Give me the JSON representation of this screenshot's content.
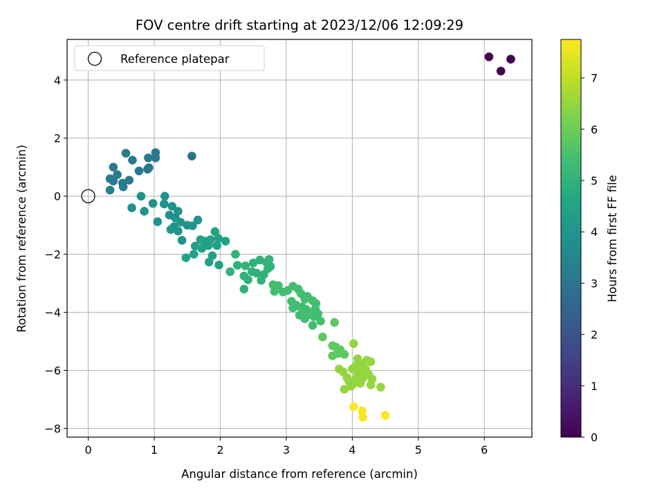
{
  "chart_data": {
    "type": "scatter",
    "title": "FOV centre drift starting at 2023/12/06 12:09:29",
    "xlabel": "Angular distance from reference (arcmin)",
    "ylabel": "Rotation from reference (arcmin)",
    "xlim": [
      -0.32,
      6.72
    ],
    "ylim": [
      -8.3,
      5.4
    ],
    "xticks": [
      0,
      1,
      2,
      3,
      4,
      5,
      6
    ],
    "yticks": [
      -8,
      -6,
      -4,
      -2,
      0,
      2,
      4
    ],
    "grid": true,
    "legend": {
      "placement": "upper-left",
      "entries": [
        "Reference platepar"
      ]
    },
    "reference_point": {
      "x": 0,
      "y": 0
    },
    "colorbar": {
      "label": "Hours from first FF file",
      "colormap": "viridis",
      "range": [
        0,
        7.75
      ],
      "ticks": [
        0,
        1,
        2,
        3,
        4,
        5,
        6,
        7
      ]
    },
    "points": [
      [
        6.07,
        4.8,
        0
      ],
      [
        6.4,
        4.72,
        0
      ],
      [
        6.25,
        4.31,
        0
      ],
      [
        0.57,
        1.48,
        3.1
      ],
      [
        1.02,
        1.5,
        3.1
      ],
      [
        1.02,
        1.32,
        3.1
      ],
      [
        0.91,
        1.32,
        3.1
      ],
      [
        0.67,
        1.24,
        3.1
      ],
      [
        0.92,
        0.98,
        3.1
      ],
      [
        0.9,
        0.93,
        3.1
      ],
      [
        0.77,
        0.87,
        3.1
      ],
      [
        0.38,
        1.0,
        3.2
      ],
      [
        0.44,
        0.74,
        3.2
      ],
      [
        0.33,
        0.6,
        3.2
      ],
      [
        0.38,
        0.52,
        3.2
      ],
      [
        0.52,
        0.45,
        3.2
      ],
      [
        0.62,
        0.55,
        3.2
      ],
      [
        0.53,
        0.32,
        3.2
      ],
      [
        0.33,
        0.21,
        3.3
      ],
      [
        1.57,
        1.38,
        3.0
      ],
      [
        0.8,
        0.0,
        3.9
      ],
      [
        1.16,
        0.0,
        3.9
      ],
      [
        0.98,
        -0.25,
        3.9
      ],
      [
        1.15,
        -0.27,
        3.9
      ],
      [
        1.27,
        -0.35,
        3.9
      ],
      [
        0.66,
        -0.4,
        3.9
      ],
      [
        0.85,
        -0.52,
        3.9
      ],
      [
        1.36,
        -0.52,
        3.9
      ],
      [
        1.23,
        -0.65,
        3.9
      ],
      [
        1.32,
        -0.75,
        3.9
      ],
      [
        1.05,
        -0.88,
        3.9
      ],
      [
        1.4,
        -0.9,
        4.0
      ],
      [
        1.3,
        -1.05,
        4.0
      ],
      [
        1.25,
        -1.15,
        4.0
      ],
      [
        1.36,
        -1.2,
        4.0
      ],
      [
        1.5,
        -1.0,
        4.0
      ],
      [
        1.58,
        -1.02,
        4.0
      ],
      [
        1.66,
        -0.82,
        4.0
      ],
      [
        1.42,
        -1.52,
        4.0
      ],
      [
        1.7,
        -1.5,
        4.4
      ],
      [
        1.78,
        -1.6,
        4.4
      ],
      [
        1.85,
        -1.5,
        4.4
      ],
      [
        1.92,
        -1.22,
        4.4
      ],
      [
        1.97,
        -1.45,
        4.4
      ],
      [
        2.08,
        -1.55,
        4.4
      ],
      [
        1.95,
        -1.7,
        4.4
      ],
      [
        1.72,
        -1.8,
        4.4
      ],
      [
        1.62,
        -1.72,
        4.4
      ],
      [
        1.82,
        -1.7,
        4.4
      ],
      [
        1.88,
        -2.05,
        4.4
      ],
      [
        1.6,
        -2.0,
        4.4
      ],
      [
        1.48,
        -2.12,
        4.4
      ],
      [
        1.77,
        -1.55,
        4.4
      ],
      [
        1.83,
        -2.27,
        4.4
      ],
      [
        1.98,
        -2.37,
        4.4
      ],
      [
        2.23,
        -2.0,
        5.0
      ],
      [
        2.26,
        -2.38,
        5.0
      ],
      [
        2.15,
        -2.6,
        5.0
      ],
      [
        2.38,
        -2.4,
        5.0
      ],
      [
        2.5,
        -2.3,
        5.0
      ],
      [
        2.6,
        -2.2,
        5.0
      ],
      [
        2.74,
        -2.18,
        5.0
      ],
      [
        2.48,
        -2.6,
        5.0
      ],
      [
        2.36,
        -2.75,
        5.0
      ],
      [
        2.55,
        -2.65,
        5.0
      ],
      [
        2.62,
        -2.9,
        5.0
      ],
      [
        2.72,
        -2.5,
        5.0
      ],
      [
        2.42,
        -2.88,
        5.0
      ],
      [
        2.36,
        -3.2,
        5.0
      ],
      [
        2.7,
        -2.28,
        5.0
      ],
      [
        2.76,
        -2.42,
        5.0
      ],
      [
        2.66,
        -2.7,
        5.0
      ],
      [
        2.8,
        -3.05,
        5.4
      ],
      [
        2.88,
        -3.08,
        5.4
      ],
      [
        2.95,
        -3.3,
        5.4
      ],
      [
        2.82,
        -3.28,
        5.4
      ],
      [
        3.1,
        -3.1,
        5.4
      ],
      [
        3.18,
        -3.2,
        5.4
      ],
      [
        3.22,
        -3.35,
        5.4
      ],
      [
        3.08,
        -3.62,
        5.4
      ],
      [
        3.15,
        -3.75,
        5.4
      ],
      [
        3.28,
        -3.55,
        5.4
      ],
      [
        3.32,
        -3.45,
        5.4
      ],
      [
        3.4,
        -3.6,
        5.4
      ],
      [
        3.45,
        -3.7,
        5.4
      ],
      [
        3.24,
        -3.82,
        5.4
      ],
      [
        3.3,
        -3.9,
        5.4
      ],
      [
        3.38,
        -4.0,
        5.4
      ],
      [
        3.2,
        -4.1,
        5.4
      ],
      [
        3.28,
        -4.22,
        5.4
      ],
      [
        3.42,
        -4.15,
        5.4
      ],
      [
        3.48,
        -4.05,
        5.4
      ],
      [
        3.4,
        -4.45,
        5.4
      ],
      [
        3.52,
        -4.3,
        5.4
      ],
      [
        3.1,
        -3.85,
        5.4
      ],
      [
        3.16,
        -3.78,
        5.4
      ],
      [
        3.02,
        -3.25,
        5.4
      ],
      [
        3.25,
        -3.95,
        5.4
      ],
      [
        3.35,
        -4.08,
        5.4
      ],
      [
        3.44,
        -3.88,
        5.4
      ],
      [
        3.55,
        -4.85,
        5.8
      ],
      [
        3.73,
        -4.35,
        5.8
      ],
      [
        3.7,
        -5.15,
        5.8
      ],
      [
        3.75,
        -5.2,
        5.8
      ],
      [
        3.7,
        -5.5,
        5.8
      ],
      [
        3.82,
        -5.3,
        5.8
      ],
      [
        3.88,
        -5.45,
        5.8
      ],
      [
        3.78,
        -5.42,
        5.8
      ],
      [
        3.8,
        -5.95,
        6.5
      ],
      [
        3.86,
        -6.05,
        6.5
      ],
      [
        3.92,
        -6.25,
        6.5
      ],
      [
        4.0,
        -6.5,
        6.5
      ],
      [
        4.02,
        -5.08,
        6.5
      ],
      [
        4.05,
        -5.85,
        6.5
      ],
      [
        4.08,
        -5.6,
        6.5
      ],
      [
        4.12,
        -5.75,
        6.5
      ],
      [
        4.15,
        -5.88,
        6.5
      ],
      [
        4.1,
        -6.1,
        6.5
      ],
      [
        4.18,
        -6.2,
        6.5
      ],
      [
        4.2,
        -5.95,
        6.5
      ],
      [
        4.22,
        -5.65,
        6.5
      ],
      [
        4.28,
        -5.7,
        6.5
      ],
      [
        4.25,
        -6.15,
        6.5
      ],
      [
        4.3,
        -6.3,
        6.5
      ],
      [
        4.28,
        -6.5,
        6.5
      ],
      [
        4.43,
        -6.58,
        6.5
      ],
      [
        4.0,
        -5.95,
        6.5
      ],
      [
        4.05,
        -6.3,
        6.5
      ],
      [
        3.95,
        -6.38,
        6.5
      ],
      [
        3.98,
        -6.55,
        6.5
      ],
      [
        3.88,
        -6.65,
        6.5
      ],
      [
        4.12,
        -6.45,
        6.5
      ],
      [
        4.15,
        -6.3,
        6.5
      ],
      [
        4.18,
        -6.05,
        6.5
      ],
      [
        4.08,
        -6.15,
        6.5
      ],
      [
        4.02,
        -7.25,
        7.7
      ],
      [
        4.15,
        -7.4,
        7.7
      ],
      [
        4.16,
        -7.62,
        7.7
      ],
      [
        4.5,
        -7.55,
        7.7
      ]
    ]
  }
}
